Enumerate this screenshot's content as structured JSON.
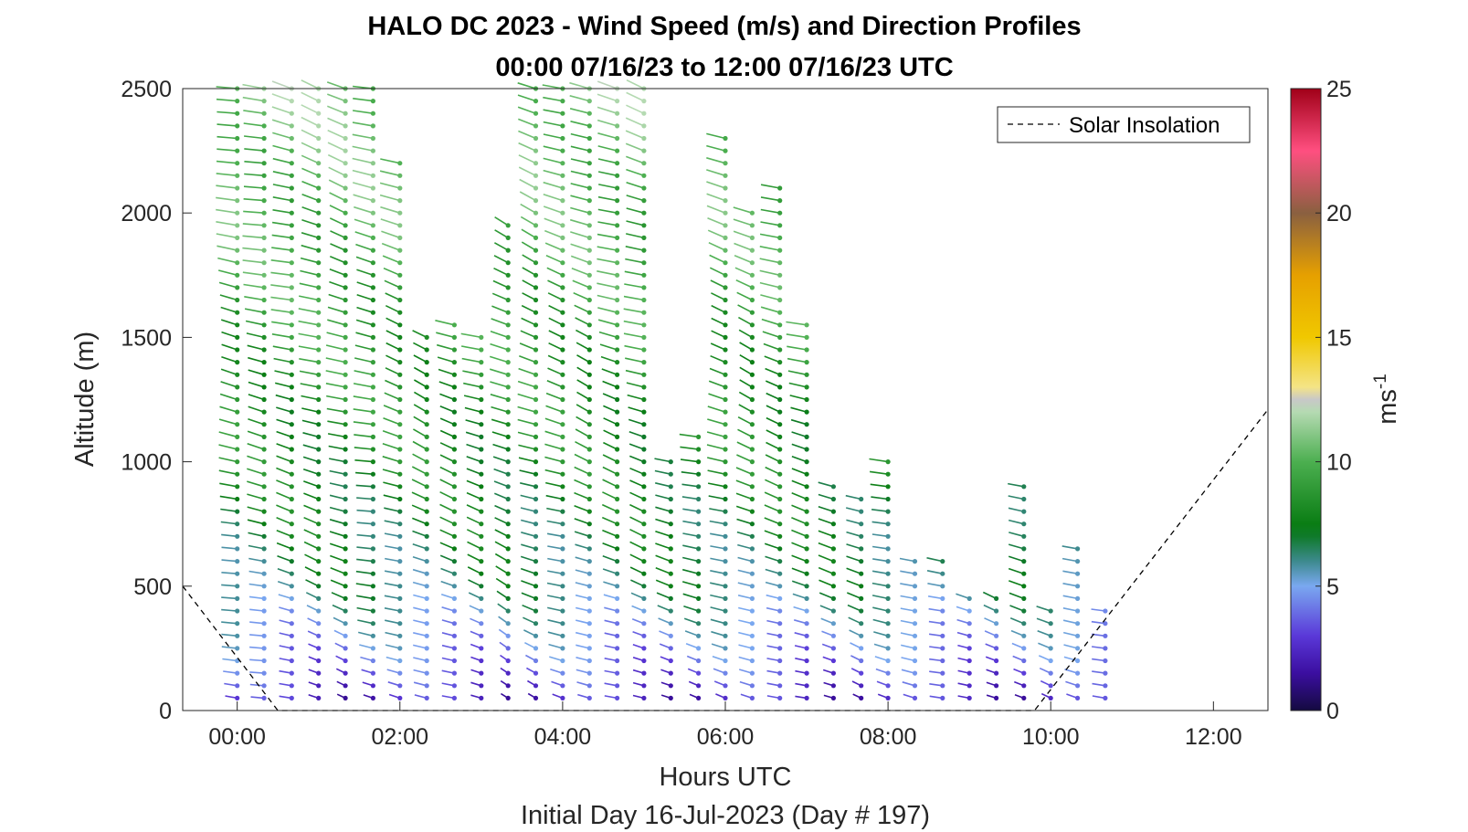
{
  "chart_data": {
    "type": "barb-profile",
    "title": [
      "HALO DC 2023 - Wind Speed (m/s) and Direction Profiles",
      "00:00 07/16/23 to 12:00 07/16/23  UTC"
    ],
    "xlabel": "Hours UTC",
    "subtitle": "Initial Day 16-Jul-2023 (Day # 197)",
    "ylabel": "Altitude (m)",
    "x_ticks": [
      "00:00",
      "02:00",
      "04:00",
      "06:00",
      "08:00",
      "10:00",
      "12:00"
    ],
    "y_ticks": [
      "0",
      "500",
      "1000",
      "1500",
      "2000",
      "2500"
    ],
    "xlim": [
      -0.67,
      12.67
    ],
    "ylim": [
      0,
      2500
    ],
    "colorbar": {
      "label": "ms",
      "label_sup": "-1",
      "range": [
        0,
        25
      ],
      "ticks": [
        "0",
        "5",
        "10",
        "15",
        "20",
        "25"
      ]
    },
    "legend": {
      "entry": "Solar Insolation",
      "position": "top-right"
    },
    "solar_insolation": [
      [
        -0.67,
        500
      ],
      [
        0.5,
        0
      ],
      [
        9.8,
        0
      ],
      [
        12.67,
        1210
      ]
    ],
    "profiles": [
      {
        "t": 0.0,
        "top": 2500,
        "dir": 250
      },
      {
        "t": 0.33,
        "top": 2500,
        "dir": 250
      },
      {
        "t": 0.67,
        "top": 2500,
        "dir": 245
      },
      {
        "t": 1.0,
        "top": 2500,
        "dir": 240
      },
      {
        "t": 1.33,
        "top": 2500,
        "dir": 240
      },
      {
        "t": 1.67,
        "top": 2500,
        "dir": 250
      },
      {
        "t": 2.0,
        "top": 2230,
        "dir": 240
      },
      {
        "t": 2.33,
        "top": 1530,
        "dir": 235
      },
      {
        "t": 2.67,
        "top": 1560,
        "dir": 240
      },
      {
        "t": 3.0,
        "top": 1500,
        "dir": 240
      },
      {
        "t": 3.33,
        "top": 1950,
        "dir": 230
      },
      {
        "t": 3.67,
        "top": 2500,
        "dir": 235
      },
      {
        "t": 4.0,
        "top": 2500,
        "dir": 240
      },
      {
        "t": 4.33,
        "top": 2500,
        "dir": 235
      },
      {
        "t": 4.67,
        "top": 2500,
        "dir": 240
      },
      {
        "t": 5.0,
        "top": 2500,
        "dir": 240
      },
      {
        "t": 5.33,
        "top": 1000,
        "dir": 245
      },
      {
        "t": 5.67,
        "top": 1100,
        "dir": 245
      },
      {
        "t": 6.0,
        "top": 2300,
        "dir": 240
      },
      {
        "t": 6.33,
        "top": 2000,
        "dir": 235
      },
      {
        "t": 6.67,
        "top": 2100,
        "dir": 240
      },
      {
        "t": 7.0,
        "top": 1550,
        "dir": 245
      },
      {
        "t": 7.33,
        "top": 900,
        "dir": 245
      },
      {
        "t": 7.67,
        "top": 880,
        "dir": 240
      },
      {
        "t": 8.0,
        "top": 1000,
        "dir": 245
      },
      {
        "t": 8.33,
        "top": 600,
        "dir": 240
      },
      {
        "t": 8.67,
        "top": 620,
        "dir": 245
      },
      {
        "t": 9.0,
        "top": 480,
        "dir": 240
      },
      {
        "t": 9.33,
        "top": 490,
        "dir": 240
      },
      {
        "t": 9.67,
        "top": 900,
        "dir": 245
      },
      {
        "t": 10.0,
        "top": 410,
        "dir": 240
      },
      {
        "t": 10.33,
        "top": 660,
        "dir": 240
      },
      {
        "t": 10.67,
        "top": 440,
        "dir": 245
      }
    ]
  }
}
